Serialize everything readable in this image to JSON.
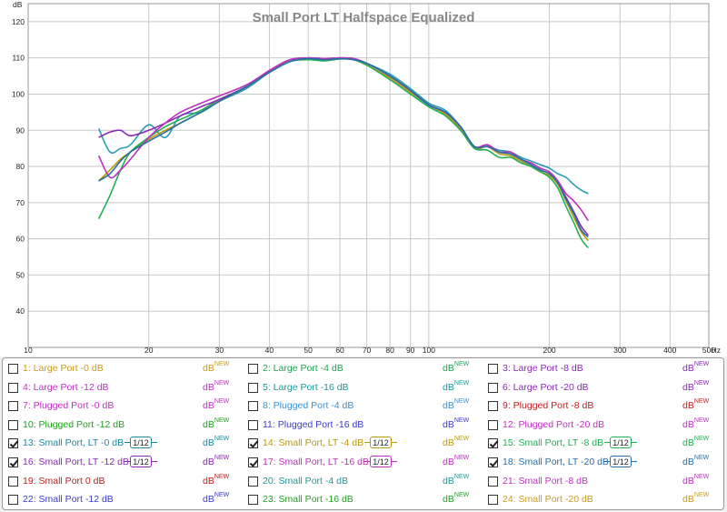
{
  "chart_data": {
    "type": "line",
    "title": "Small Port LT Halfspace Equalized",
    "ylabel": "dB",
    "xlabel": "",
    "x_unit_label": "Hz",
    "x_scale": "log",
    "xlim": [
      10,
      500
    ],
    "ylim": [
      30,
      125
    ],
    "grid": true,
    "x_ticks": [
      10,
      20,
      30,
      40,
      50,
      60,
      70,
      80,
      90,
      100,
      200,
      300,
      400,
      500
    ],
    "y_ticks": [
      40,
      50,
      60,
      70,
      80,
      90,
      100,
      110,
      120
    ],
    "series": [
      {
        "name": "13: Small Port, LT -0 dB",
        "color": "#2a9db5",
        "x": [
          15,
          16,
          17,
          18,
          20,
          22,
          24,
          27,
          30,
          35,
          40,
          45,
          50,
          55,
          60,
          65,
          70,
          80,
          90,
          100,
          110,
          120,
          130,
          140,
          150,
          160,
          170,
          180,
          190,
          200,
          210,
          220,
          230,
          240,
          250
        ],
        "y": [
          90.5,
          84,
          85,
          86,
          91.5,
          88,
          94,
          95,
          98,
          101.5,
          106,
          109,
          110,
          109.7,
          110,
          109.8,
          108.5,
          105.5,
          101.5,
          97.5,
          95.5,
          91,
          85.5,
          85.5,
          84.5,
          84,
          82.5,
          81.5,
          80.5,
          79.5,
          78,
          77,
          75,
          73.5,
          72.5
        ]
      },
      {
        "name": "14: Small Port, LT -4 dB",
        "color": "#b89a10",
        "x": [
          15,
          16,
          17,
          18,
          20,
          22,
          24,
          27,
          30,
          35,
          40,
          45,
          50,
          55,
          60,
          65,
          70,
          80,
          90,
          100,
          110,
          120,
          130,
          140,
          150,
          160,
          170,
          180,
          190,
          200,
          210,
          220,
          230,
          240,
          250
        ],
        "y": [
          76,
          79,
          82,
          84,
          87.5,
          90,
          92,
          95,
          98,
          102,
          106.5,
          109.5,
          109.8,
          109.5,
          109.8,
          109.5,
          108,
          104.5,
          100.5,
          97,
          94.5,
          90.5,
          85,
          85.5,
          83.5,
          83,
          81.5,
          80,
          78.5,
          77.5,
          75,
          70.5,
          66,
          62,
          59.5
        ]
      },
      {
        "name": "15: Small Port, LT -8 dB",
        "color": "#22b055",
        "x": [
          15,
          16,
          17,
          18,
          20,
          22,
          24,
          27,
          30,
          35,
          40,
          45,
          50,
          55,
          60,
          65,
          70,
          80,
          90,
          100,
          110,
          120,
          130,
          140,
          150,
          160,
          170,
          180,
          190,
          200,
          210,
          220,
          230,
          240,
          250
        ],
        "y": [
          65.5,
          72,
          79,
          84,
          88,
          91,
          93,
          95.5,
          98.5,
          102,
          106,
          109,
          109.5,
          109.2,
          109.7,
          109.5,
          108,
          104,
          100,
          96.5,
          94,
          90,
          85,
          84.5,
          82.5,
          82.5,
          81,
          80,
          78.5,
          77,
          74,
          69,
          64.5,
          60,
          57.5
        ]
      },
      {
        "name": "16: Small Port, LT -12 dB",
        "color": "#8a2ab5",
        "x": [
          15,
          16,
          17,
          18,
          20,
          22,
          24,
          27,
          30,
          35,
          40,
          45,
          50,
          55,
          60,
          65,
          70,
          80,
          90,
          100,
          110,
          120,
          130,
          140,
          150,
          160,
          170,
          180,
          190,
          200,
          210,
          220,
          230,
          240,
          250
        ],
        "y": [
          88,
          89.5,
          90,
          88.5,
          90,
          92,
          94,
          96.5,
          98.5,
          102,
          106.5,
          109.5,
          110,
          109.8,
          110,
          109.8,
          108.5,
          105,
          101,
          97,
          95,
          91,
          85.5,
          86,
          84,
          83.5,
          82,
          80.5,
          79,
          78,
          75.5,
          71.5,
          67.5,
          63.5,
          61
        ]
      },
      {
        "name": "17: Small Port, LT -16 dB",
        "color": "#c030c0",
        "x": [
          15,
          16,
          17,
          18,
          20,
          22,
          24,
          27,
          30,
          35,
          40,
          45,
          50,
          55,
          60,
          65,
          70,
          80,
          90,
          100,
          110,
          120,
          130,
          140,
          150,
          160,
          170,
          180,
          190,
          200,
          210,
          220,
          230,
          240,
          250
        ],
        "y": [
          83,
          77,
          79,
          82,
          88,
          92,
          95,
          97.5,
          99.5,
          102.5,
          106.5,
          109.5,
          110,
          109.8,
          110,
          109.8,
          108.5,
          105,
          101,
          97,
          95,
          91,
          85.5,
          86,
          84,
          84,
          82,
          81,
          79.5,
          78.5,
          76,
          72.5,
          70.5,
          68,
          65
        ]
      },
      {
        "name": "18: Small Port, LT -20 dB",
        "color": "#2a6ea8",
        "x": [
          15,
          16,
          17,
          18,
          20,
          22,
          24,
          27,
          30,
          35,
          40,
          45,
          50,
          55,
          60,
          65,
          70,
          80,
          90,
          100,
          110,
          120,
          130,
          140,
          150,
          160,
          170,
          180,
          190,
          200,
          210,
          220,
          230,
          240,
          250
        ],
        "y": [
          76,
          78,
          81.5,
          84,
          87,
          89.5,
          92,
          95,
          98,
          102,
          106,
          109,
          109.8,
          109.5,
          109.8,
          109.5,
          108.5,
          105,
          101,
          97,
          95,
          91,
          85.5,
          85.5,
          84,
          83.5,
          82,
          80.5,
          79,
          78,
          75.5,
          71,
          67,
          62.5,
          60.5
        ]
      }
    ]
  },
  "legend": {
    "db_text": "dB",
    "new_text": "NEW",
    "smooth_text": "1/12",
    "rows": [
      [
        {
          "label": "1: Large Port -0 dB",
          "color": "#c89a20",
          "checked": false
        },
        {
          "label": "2: Large Port -4 dB",
          "color": "#22a055",
          "checked": false
        },
        {
          "label": "3: Large Port -8 dB",
          "color": "#8a2ab5",
          "checked": false
        }
      ],
      [
        {
          "label": "4: Large Port -12 dB",
          "color": "#c030c0",
          "checked": false
        },
        {
          "label": "5: Large Port -16 dB",
          "color": "#1a9a9a",
          "checked": false
        },
        {
          "label": "6: Large Port -20 dB",
          "color": "#8a2ab5",
          "checked": false
        }
      ],
      [
        {
          "label": "7: Plugged Port -0 dB",
          "color": "#c030c0",
          "checked": false
        },
        {
          "label": "8: Plugged Port -4 dB",
          "color": "#3a90d0",
          "checked": false
        },
        {
          "label": "9: Plugged Port -8 dB",
          "color": "#c02020",
          "checked": false
        }
      ],
      [
        {
          "label": "10: Plugged Port -12 dB",
          "color": "#22a022",
          "checked": false
        },
        {
          "label": "11: Plugged Port -16 dB",
          "color": "#3a3ad0",
          "checked": false
        },
        {
          "label": "12: Plugged Port -20 dB",
          "color": "#c030c0",
          "checked": false
        }
      ],
      [
        {
          "label": "13: Small Port, LT -0 dB",
          "color": "#1a8aa0",
          "checked": true,
          "smooth": true
        },
        {
          "label": "14: Small Port, LT -4 dB",
          "color": "#b89a10",
          "checked": true,
          "smooth": true
        },
        {
          "label": "15: Small Port, LT -8 dB",
          "color": "#22b055",
          "checked": true,
          "smooth": true
        }
      ],
      [
        {
          "label": "16: Small Port, LT -12 dB",
          "color": "#8a2ab5",
          "checked": true,
          "smooth": true
        },
        {
          "label": "17: Small Port, LT -16 dB",
          "color": "#c030c0",
          "checked": true,
          "smooth": true
        },
        {
          "label": "18: Small Port, LT -20 dB",
          "color": "#2a6ea8",
          "checked": true,
          "smooth": true
        }
      ],
      [
        {
          "label": "19: Small Port 0 dB",
          "color": "#c02020",
          "checked": false
        },
        {
          "label": "20: Small Port -4 dB",
          "color": "#1a9a9a",
          "checked": false
        },
        {
          "label": "21: Small Port -8 dB",
          "color": "#c030c0",
          "checked": false
        }
      ],
      [
        {
          "label": "22: Small Port -12 dB",
          "color": "#3a3ad0",
          "checked": false
        },
        {
          "label": "23: Small Port -16 dB",
          "color": "#22a022",
          "checked": false
        },
        {
          "label": "24: Small Port -20 dB",
          "color": "#c89a20",
          "checked": false
        }
      ]
    ]
  }
}
